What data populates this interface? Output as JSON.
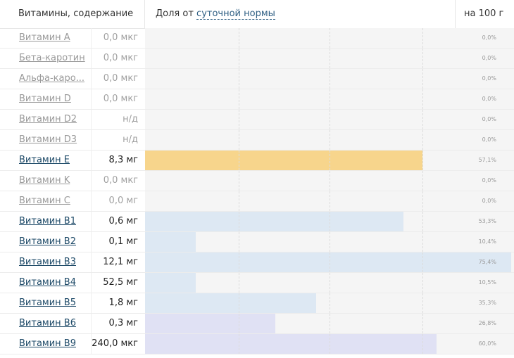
{
  "header": {
    "name_col": "Витамины, содержание",
    "share_prefix": "Доля от",
    "share_link": "суточной нормы",
    "per_selector": "на 100 г"
  },
  "colors": {
    "vit_e": "#f7d58c",
    "b_group_blue": "#dde8f3",
    "b_group_lavender": "#e0e1f4"
  },
  "rows": [
    {
      "name": "Витамин A",
      "value": "0,0 мкг",
      "pct_label": "0,0%",
      "pct": 0.0,
      "color": "",
      "active": false
    },
    {
      "name": "Бета-каротин",
      "value": "0,0 мкг",
      "pct_label": "0,0%",
      "pct": 0.0,
      "color": "",
      "active": false
    },
    {
      "name": "Альфа-каро...",
      "value": "0,0 мкг",
      "pct_label": "0,0%",
      "pct": 0.0,
      "color": "",
      "active": false
    },
    {
      "name": "Витамин D",
      "value": "0,0 мкг",
      "pct_label": "0,0%",
      "pct": 0.0,
      "color": "",
      "active": false
    },
    {
      "name": "Витамин D2",
      "value": "н/д",
      "pct_label": "0,0%",
      "pct": 0.0,
      "color": "",
      "active": false
    },
    {
      "name": "Витамин D3",
      "value": "н/д",
      "pct_label": "0,0%",
      "pct": 0.0,
      "color": "",
      "active": false
    },
    {
      "name": "Витамин E",
      "value": "8,3 мг",
      "pct_label": "57,1%",
      "pct": 57.1,
      "color": "#f7d58c",
      "active": true
    },
    {
      "name": "Витамин K",
      "value": "0,0 мкг",
      "pct_label": "0,0%",
      "pct": 0.0,
      "color": "",
      "active": false
    },
    {
      "name": "Витамин C",
      "value": "0,0 мг",
      "pct_label": "0,0%",
      "pct": 0.0,
      "color": "",
      "active": false
    },
    {
      "name": "Витамин B1",
      "value": "0,6 мг",
      "pct_label": "53,3%",
      "pct": 53.3,
      "color": "#dde8f3",
      "active": true
    },
    {
      "name": "Витамин B2",
      "value": "0,1 мг",
      "pct_label": "10,4%",
      "pct": 10.4,
      "color": "#dde8f3",
      "active": true
    },
    {
      "name": "Витамин B3",
      "value": "12,1 мг",
      "pct_label": "75,4%",
      "pct": 75.4,
      "color": "#dde8f3",
      "active": true
    },
    {
      "name": "Витамин B4",
      "value": "52,5 мг",
      "pct_label": "10,5%",
      "pct": 10.5,
      "color": "#dde8f3",
      "active": true
    },
    {
      "name": "Витамин B5",
      "value": "1,8 мг",
      "pct_label": "35,3%",
      "pct": 35.3,
      "color": "#dde8f3",
      "active": true
    },
    {
      "name": "Витамин B6",
      "value": "0,3 мг",
      "pct_label": "26,8%",
      "pct": 26.8,
      "color": "#e0e1f4",
      "active": true
    },
    {
      "name": "Витамин B9",
      "value": "240,0 мкг",
      "pct_label": "60,0%",
      "pct": 60.0,
      "color": "#e0e1f4",
      "active": true
    }
  ]
}
